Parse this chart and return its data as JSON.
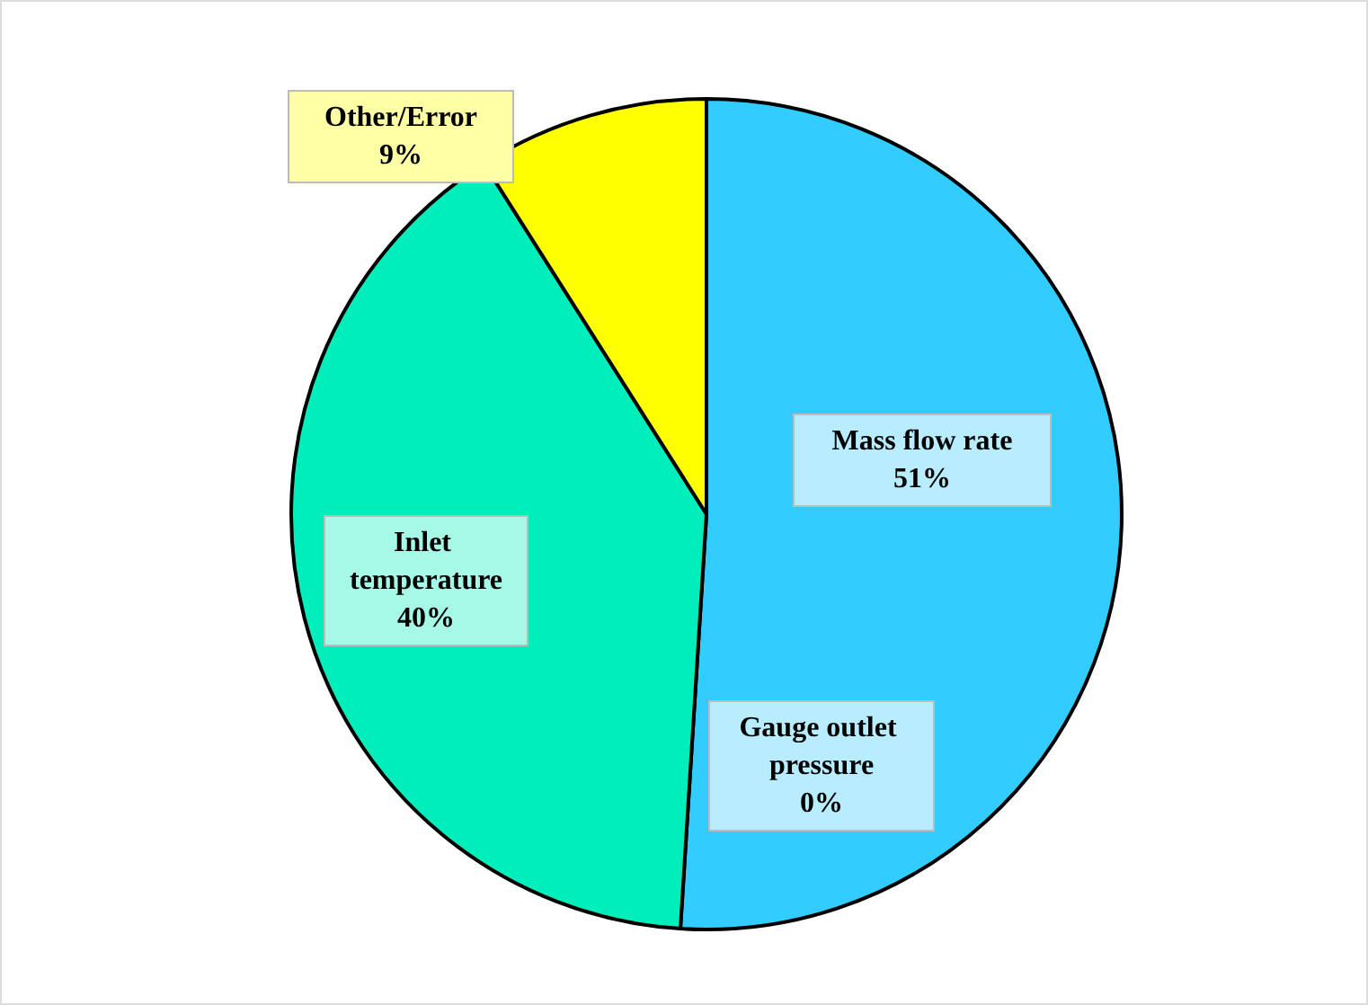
{
  "chart_data": {
    "type": "pie",
    "categories": [
      "Mass flow rate",
      "Gauge outlet pressure",
      "Inlet temperature",
      "Other/Error"
    ],
    "values": [
      51,
      0,
      40,
      9
    ],
    "colors": [
      "#33ccff",
      "#33ccff",
      "#00eebb",
      "#ffff00"
    ],
    "value_labels": [
      "51%",
      "0%",
      "40%",
      "9%"
    ],
    "legend": false
  }
}
